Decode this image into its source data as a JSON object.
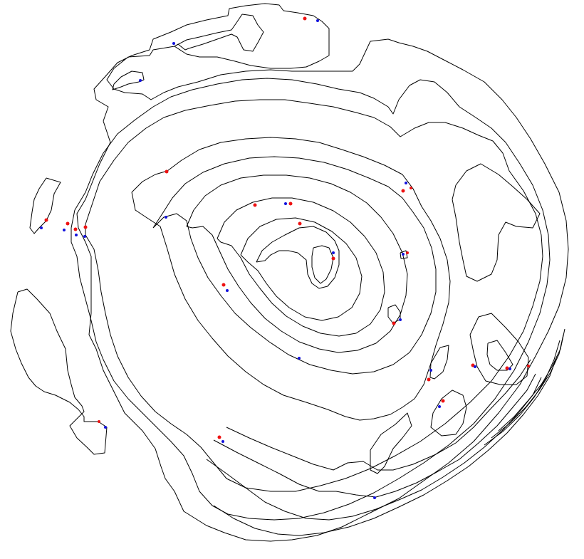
{
  "figure": {
    "background_color": "#ffffff",
    "contour_color": "#000000",
    "marker_colors": {
      "red": "#ee1111",
      "blue": "#1111dd"
    }
  }
}
